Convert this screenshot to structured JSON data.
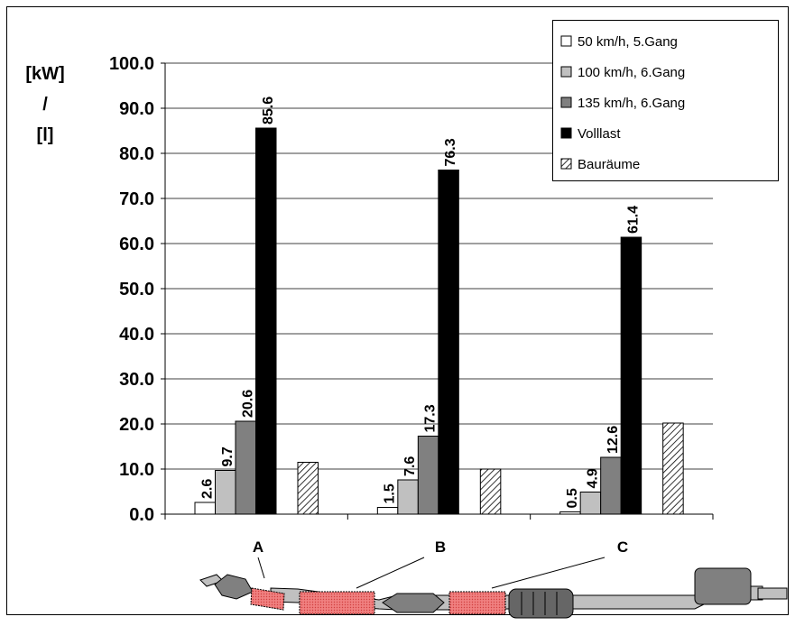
{
  "chart_data": {
    "type": "bar",
    "y_label_lines": [
      "[kW]",
      "/",
      "[l]"
    ],
    "categories": [
      null,
      null,
      null
    ],
    "series": [
      {
        "name": "50 km/h, 5.Gang",
        "color": "#ffffff",
        "values": [
          2.6,
          1.5,
          0.5
        ]
      },
      {
        "name": "100 km/h, 6.Gang",
        "color": "#c0c0c0",
        "values": [
          9.7,
          7.6,
          4.9
        ]
      },
      {
        "name": "135 km/h, 6.Gang",
        "color": "#808080",
        "values": [
          20.6,
          17.3,
          12.6
        ]
      },
      {
        "name": "Volllast",
        "color": "#000000",
        "values": [
          85.6,
          76.3,
          61.4
        ]
      },
      {
        "name": "Bauräume",
        "color": "#000000",
        "hatch": true,
        "values": [
          11.5,
          10.0,
          20.2
        ],
        "no_value_labels": true
      }
    ],
    "ylim": [
      0,
      100
    ],
    "yticks": [
      {
        "value": 0,
        "label": "0.0"
      },
      {
        "value": 10,
        "label": "10.0"
      },
      {
        "value": 20,
        "label": "20.0"
      },
      {
        "value": 30,
        "label": "30.0"
      },
      {
        "value": 40,
        "label": "40.0"
      },
      {
        "value": 50,
        "label": "50.0"
      },
      {
        "value": 60,
        "label": "60.0"
      },
      {
        "value": 70,
        "label": "70.0"
      },
      {
        "value": 80,
        "label": "80.0"
      },
      {
        "value": 90,
        "label": "90.0"
      },
      {
        "value": 100,
        "label": "100.0"
      }
    ],
    "grid": true,
    "legend": "top-right",
    "annotations": [
      "A",
      "B",
      "C"
    ]
  }
}
